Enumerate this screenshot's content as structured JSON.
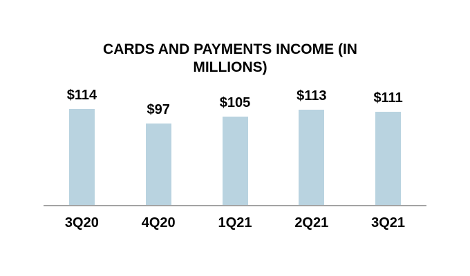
{
  "chart_data": {
    "type": "bar",
    "title": "CARDS AND PAYMENTS INCOME (IN MILLIONS)",
    "categories": [
      "3Q20",
      "4Q20",
      "1Q21",
      "2Q21",
      "3Q21"
    ],
    "values": [
      114,
      97,
      105,
      113,
      111
    ],
    "value_labels": [
      "$114",
      "$97",
      "$105",
      "$113",
      "$111"
    ],
    "xlabel": "",
    "ylabel": "",
    "ylim": [
      0,
      140
    ],
    "grid": false,
    "legend": null,
    "bar_color": "#b9d3e0",
    "axis_color": "#a3a3a3",
    "text_color": "#000000",
    "background_color": "#ffffff"
  }
}
